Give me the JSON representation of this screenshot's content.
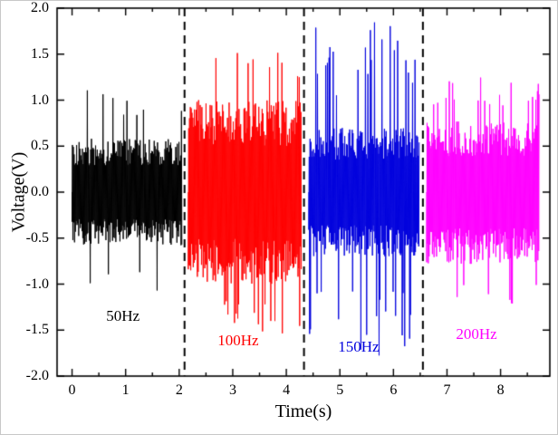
{
  "chart_data": {
    "type": "line",
    "title": "",
    "xlabel": "Time(s)",
    "ylabel": "Voltage(V)",
    "xlim": [
      -0.28,
      8.92
    ],
    "ylim": [
      -2.0,
      2.0
    ],
    "x_tick_labels": [
      "0",
      "1",
      "2",
      "3",
      "4",
      "5",
      "6",
      "7",
      "8"
    ],
    "y_tick_labels": [
      "-2.0",
      "-1.5",
      "-1.0",
      "-0.5",
      "0.0",
      "0.5",
      "1.0",
      "1.5",
      "2.0"
    ],
    "grid": false,
    "legend": "none",
    "frame_color": "#000000",
    "separator_lines": {
      "style": "dashed",
      "color": "#000000",
      "x_values": [
        2.1,
        4.33,
        6.55
      ]
    },
    "segments": [
      {
        "label": "50Hz",
        "color": "#000000",
        "x_start": 0.0,
        "x_end": 2.05,
        "core_amplitude": 0.58,
        "peak_amplitude": 1.15,
        "spike_rate": 0.05,
        "frequency_hz": 50,
        "label_x": 0.95,
        "label_y": -1.35
      },
      {
        "label": "100Hz",
        "color": "#ff0000",
        "x_start": 2.17,
        "x_end": 4.28,
        "core_amplitude": 1.0,
        "peak_amplitude": 1.55,
        "spike_rate": 0.06,
        "frequency_hz": 100,
        "label_x": 3.1,
        "label_y": -1.62
      },
      {
        "label": "150Hz",
        "color": "#0000dd",
        "x_start": 4.42,
        "x_end": 6.48,
        "core_amplitude": 0.7,
        "peak_amplitude": 1.85,
        "spike_rate": 0.13,
        "frequency_hz": 150,
        "label_x": 5.35,
        "label_y": -1.68
      },
      {
        "label": "200Hz",
        "color": "#ff00ff",
        "x_start": 6.62,
        "x_end": 8.72,
        "core_amplitude": 0.78,
        "peak_amplitude": 1.25,
        "spike_rate": 0.09,
        "frequency_hz": 200,
        "label_x": 7.55,
        "label_y": -1.55
      }
    ]
  }
}
